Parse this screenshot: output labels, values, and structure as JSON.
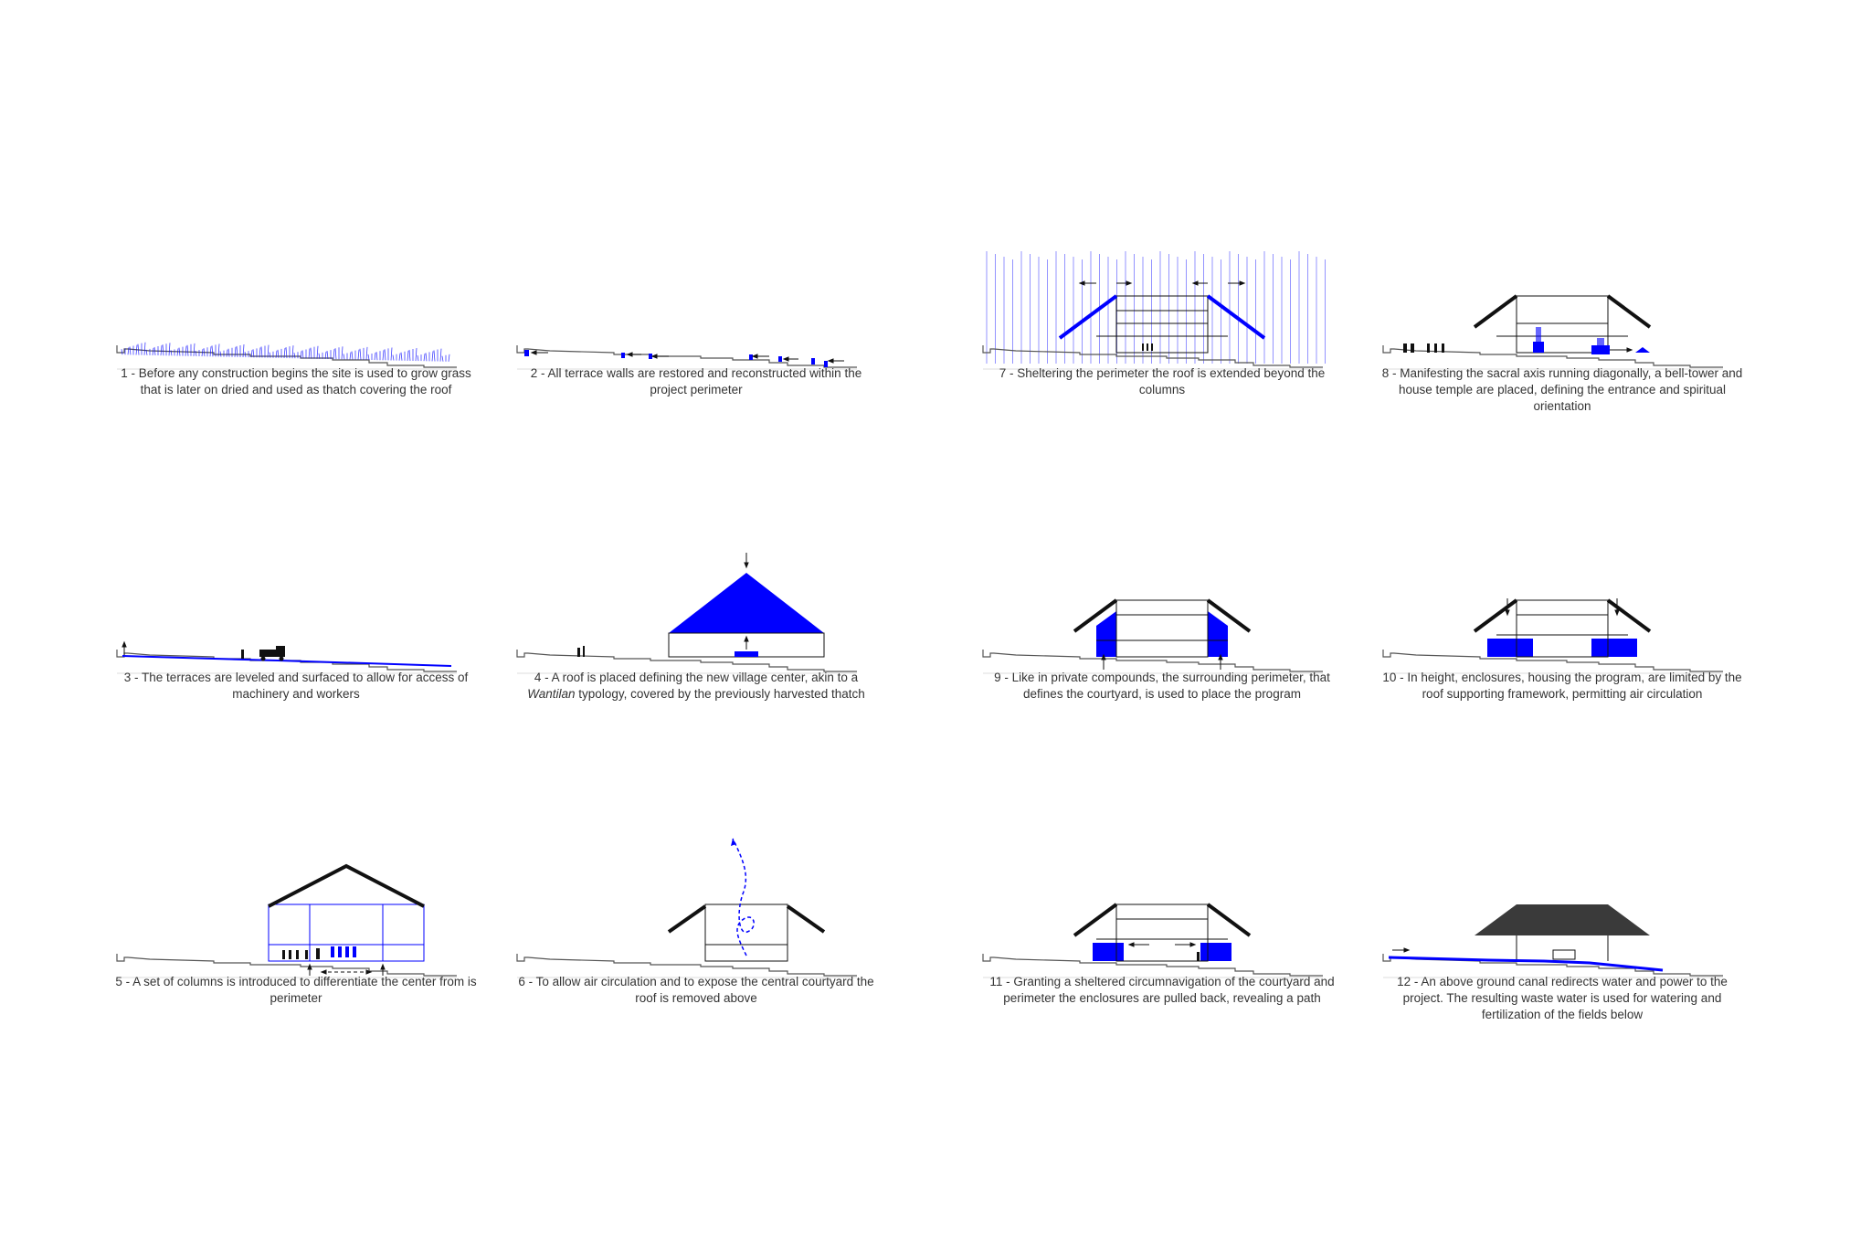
{
  "colors": {
    "accent": "#0000ff",
    "ink": "#111111",
    "ground": "#555555",
    "roof_dark": "#3a3a3a",
    "caption": "#333333"
  },
  "panels": [
    {
      "id": "p1",
      "number": "1",
      "text": "Before any construction begins the site is used to grow grass that is later on dried and used as thatch covering the roof"
    },
    {
      "id": "p2",
      "number": "2",
      "text": "All terrace walls are restored and reconstructed within the project perimeter"
    },
    {
      "id": "p7",
      "number": "7",
      "text": "Sheltering the perimeter the roof is extended beyond the columns"
    },
    {
      "id": "p8",
      "number": "8",
      "text": "Manifesting the sacral axis running diagonally, a bell-tower and house temple are placed, defining the entrance and spiritual orientation"
    },
    {
      "id": "p3",
      "number": "3",
      "text": "The terraces are leveled and surfaced to allow for access of machinery and workers"
    },
    {
      "id": "p4",
      "number": "4",
      "text_before": "A roof is placed defining the new village center, akin to a ",
      "text_em": "Wantilan",
      "text_after": " typology, covered by the previously harvested thatch"
    },
    {
      "id": "p9",
      "number": "9",
      "text": "Like in private compounds, the surrounding perimeter, that defines the courtyard, is used to place the program"
    },
    {
      "id": "p10",
      "number": "10",
      "text": "In height, enclosures, housing the program, are limited by the roof supporting framework, permitting air circulation"
    },
    {
      "id": "p5",
      "number": "5",
      "text": "A set of columns is introduced to differentiate the center from is perimeter"
    },
    {
      "id": "p6",
      "number": "6",
      "text": "To allow air circulation and to expose the central courtyard the roof is removed above"
    },
    {
      "id": "p11",
      "number": "11",
      "text": "Granting a sheltered circumnavigation of the courtyard and perimeter the enclosures are pulled back, revealing a path"
    },
    {
      "id": "p12",
      "number": "12",
      "text": "An above ground canal redirects water and power to the project. The resulting waste water is used for watering and fertilization of the fields below"
    }
  ]
}
